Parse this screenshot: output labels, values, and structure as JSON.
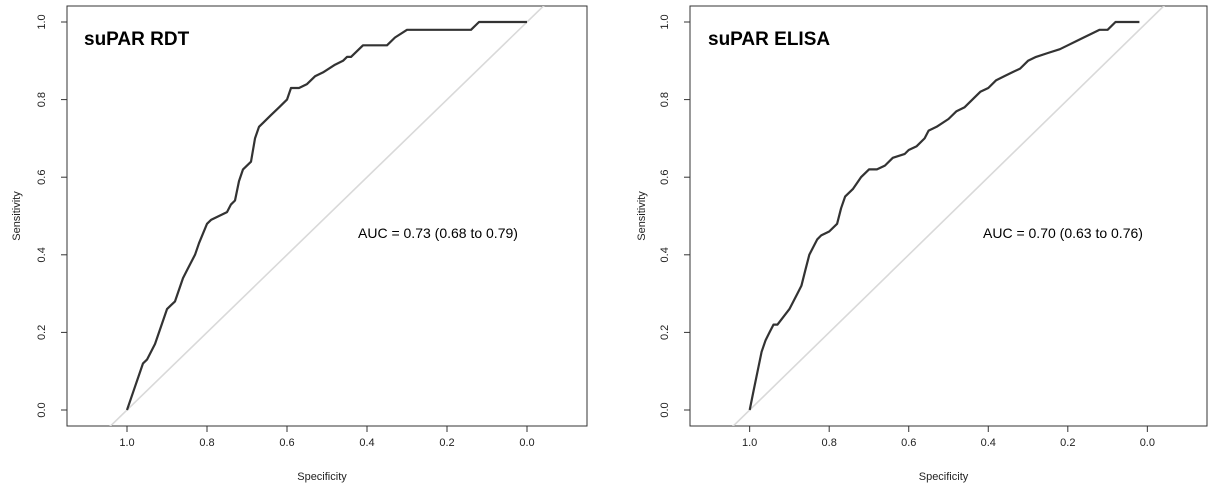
{
  "chart_data": [
    {
      "type": "line",
      "title": "suPAR RDT",
      "annotation": "AUC = 0.73 (0.68 to 0.79)",
      "xlabel": "Specificity",
      "ylabel": "Sensitivity",
      "xlim": [
        1.15,
        -0.15
      ],
      "ylim": [
        0,
        1
      ],
      "x_reversed": true,
      "xticks": [
        "1.0",
        "0.8",
        "0.6",
        "0.4",
        "0.2",
        "0.0"
      ],
      "yticks": [
        "0.0",
        "0.2",
        "0.4",
        "0.6",
        "0.8",
        "1.0"
      ],
      "grid": false,
      "reference_line": {
        "x": [
          1.05,
          -0.05
        ],
        "y": [
          -0.05,
          1.05
        ],
        "color": "#d9d9d9"
      },
      "line_color": "#333333",
      "series": [
        {
          "x": [
            1.0,
            0.98,
            0.96,
            0.95,
            0.93,
            0.92,
            0.9,
            0.89,
            0.88,
            0.86,
            0.85,
            0.83,
            0.82,
            0.8,
            0.79,
            0.77,
            0.75,
            0.74,
            0.73,
            0.72,
            0.71,
            0.7,
            0.69,
            0.68,
            0.67,
            0.66,
            0.64,
            0.62,
            0.6,
            0.59,
            0.57,
            0.55,
            0.53,
            0.51,
            0.48,
            0.46,
            0.45,
            0.44,
            0.42,
            0.41,
            0.39,
            0.35,
            0.33,
            0.3,
            0.14,
            0.12,
            0.0
          ],
          "y": [
            0.0,
            0.06,
            0.12,
            0.13,
            0.17,
            0.2,
            0.26,
            0.27,
            0.28,
            0.34,
            0.36,
            0.4,
            0.43,
            0.48,
            0.49,
            0.5,
            0.51,
            0.53,
            0.54,
            0.59,
            0.62,
            0.63,
            0.64,
            0.7,
            0.73,
            0.74,
            0.76,
            0.78,
            0.8,
            0.83,
            0.83,
            0.84,
            0.86,
            0.87,
            0.89,
            0.9,
            0.91,
            0.91,
            0.93,
            0.94,
            0.94,
            0.94,
            0.96,
            0.98,
            0.98,
            1.0,
            1.0
          ]
        }
      ]
    },
    {
      "type": "line",
      "title": "suPAR ELISA",
      "annotation": "AUC = 0.70 (0.63 to 0.76)",
      "xlabel": "Specificity",
      "ylabel": "Sensitivity",
      "xlim": [
        1.15,
        -0.15
      ],
      "ylim": [
        0,
        1
      ],
      "x_reversed": true,
      "xticks": [
        "1.0",
        "0.8",
        "0.6",
        "0.4",
        "0.2",
        "0.0"
      ],
      "yticks": [
        "0.0",
        "0.2",
        "0.4",
        "0.6",
        "0.8",
        "1.0"
      ],
      "grid": false,
      "reference_line": {
        "x": [
          1.05,
          -0.05
        ],
        "y": [
          -0.05,
          1.05
        ],
        "color": "#d9d9d9"
      },
      "line_color": "#333333",
      "series": [
        {
          "x": [
            1.0,
            0.99,
            0.98,
            0.97,
            0.96,
            0.95,
            0.94,
            0.93,
            0.9,
            0.89,
            0.88,
            0.87,
            0.86,
            0.85,
            0.84,
            0.83,
            0.82,
            0.8,
            0.78,
            0.77,
            0.76,
            0.75,
            0.74,
            0.72,
            0.71,
            0.7,
            0.68,
            0.66,
            0.64,
            0.61,
            0.6,
            0.58,
            0.56,
            0.55,
            0.53,
            0.5,
            0.48,
            0.46,
            0.44,
            0.42,
            0.4,
            0.38,
            0.36,
            0.34,
            0.32,
            0.3,
            0.28,
            0.25,
            0.22,
            0.2,
            0.18,
            0.16,
            0.14,
            0.12,
            0.1,
            0.08,
            0.06,
            0.02
          ],
          "y": [
            0.0,
            0.05,
            0.1,
            0.15,
            0.18,
            0.2,
            0.22,
            0.22,
            0.26,
            0.28,
            0.3,
            0.32,
            0.36,
            0.4,
            0.42,
            0.44,
            0.45,
            0.46,
            0.48,
            0.52,
            0.55,
            0.56,
            0.57,
            0.6,
            0.61,
            0.62,
            0.62,
            0.63,
            0.65,
            0.66,
            0.67,
            0.68,
            0.7,
            0.72,
            0.73,
            0.75,
            0.77,
            0.78,
            0.8,
            0.82,
            0.83,
            0.85,
            0.86,
            0.87,
            0.88,
            0.9,
            0.91,
            0.92,
            0.93,
            0.94,
            0.95,
            0.96,
            0.97,
            0.98,
            0.98,
            1.0,
            1.0,
            1.0
          ]
        }
      ]
    }
  ]
}
